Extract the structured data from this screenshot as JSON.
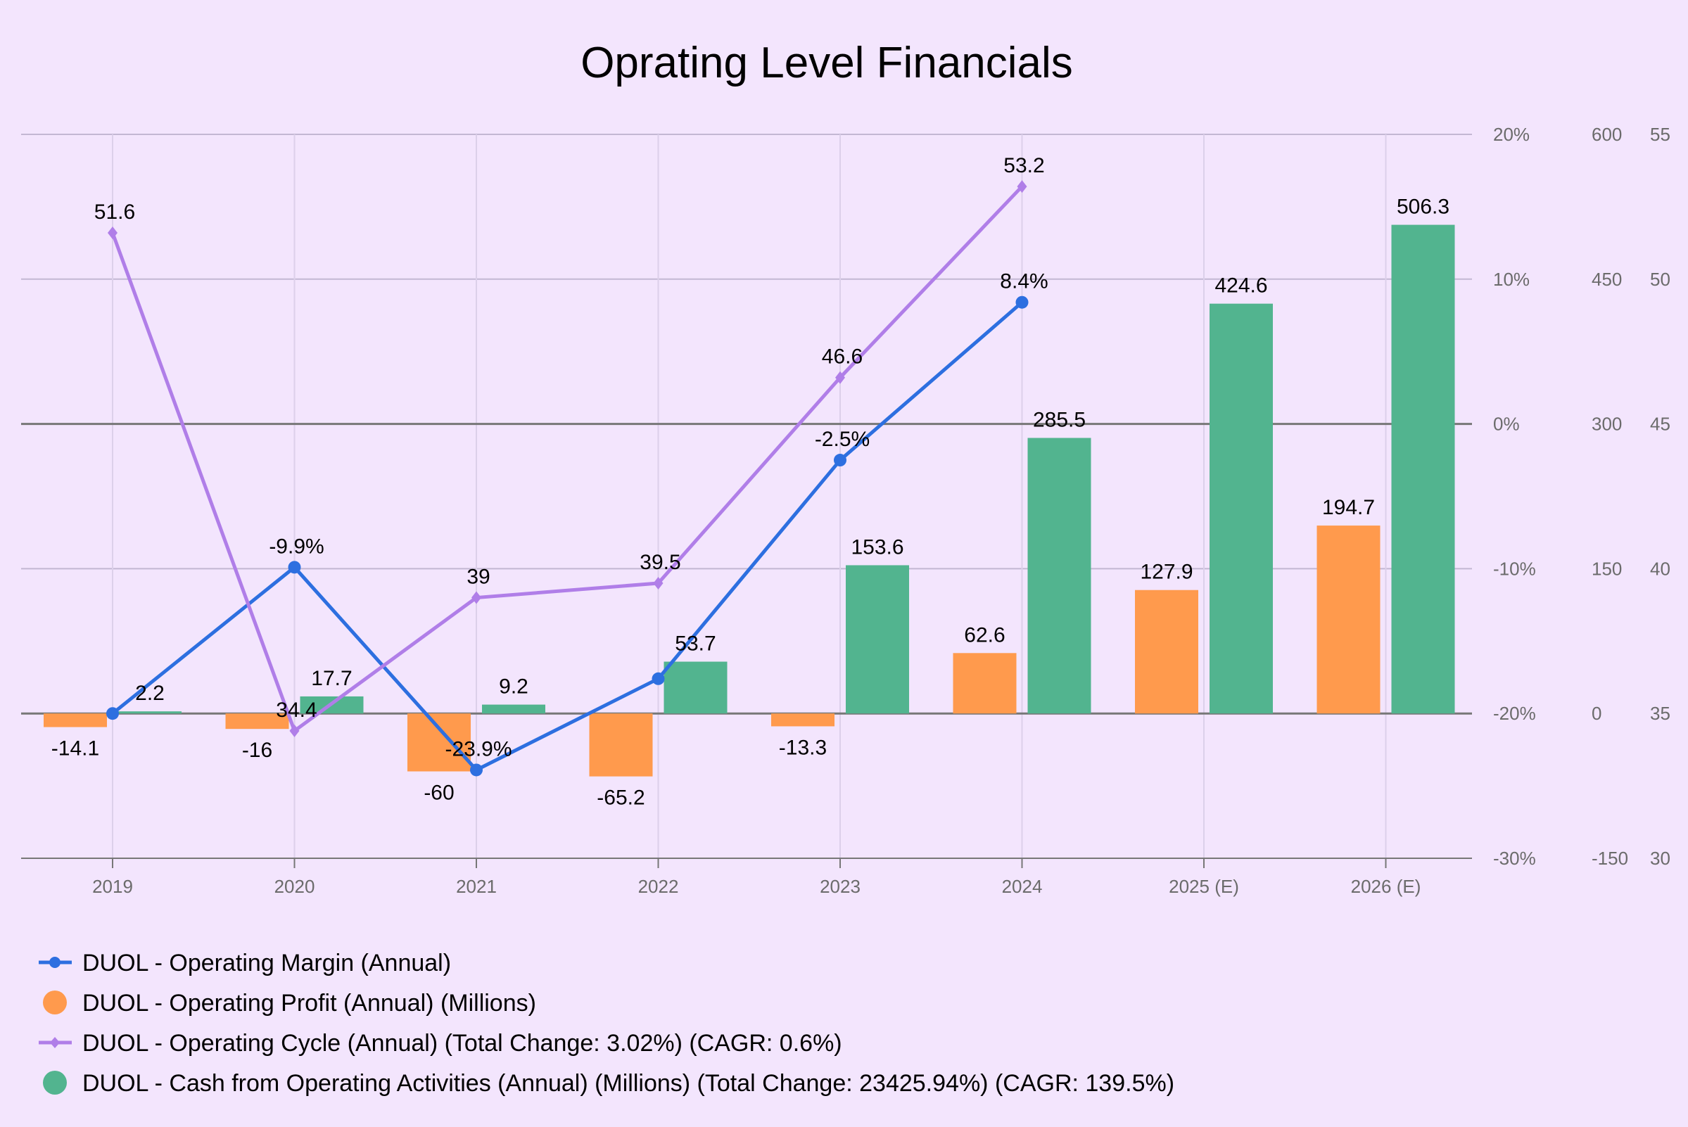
{
  "chart_data": {
    "type": "bar+line",
    "title": "Oprating Level Financials",
    "categories": [
      "2019",
      "2020",
      "2021",
      "2022",
      "2023",
      "2024",
      "2025 (E)",
      "2026 (E)"
    ],
    "axes": {
      "margin": {
        "ticks": [
          "20%",
          "10%",
          "0%",
          "-10%",
          "-20%",
          "-30%"
        ],
        "range": [
          -30,
          20
        ]
      },
      "millions": {
        "ticks": [
          "600",
          "450",
          "300",
          "150",
          "0",
          "-150"
        ],
        "range": [
          -150,
          600
        ]
      },
      "cycle": {
        "ticks": [
          "55",
          "50",
          "45",
          "40",
          "35",
          "30"
        ],
        "range": [
          30,
          55
        ]
      }
    },
    "series": [
      {
        "name": "DUOL - Operating Margin (Annual)",
        "kind": "line",
        "axis": "margin",
        "color": "#2d6fe0",
        "marker": "circle",
        "values": [
          -20,
          -9.9,
          -23.9,
          -17.6,
          -2.5,
          8.4,
          null,
          null
        ],
        "labels": [
          "",
          "-9.9%",
          "-23.9%",
          "",
          "-2.5%",
          "8.4%",
          "",
          ""
        ]
      },
      {
        "name": "DUOL - Operating Profit (Annual) (Millions)",
        "kind": "bar",
        "axis": "millions",
        "color": "#ff9a4d",
        "values": [
          -14.1,
          -16,
          -60,
          -65.2,
          -13.3,
          62.6,
          127.9,
          194.7
        ],
        "labels": [
          "-14.1",
          "-16",
          "-60",
          "-65.2",
          "-13.3",
          "62.6",
          "127.9",
          "194.7"
        ]
      },
      {
        "name": "DUOL - Operating Cycle (Annual) (Total Change: 3.02%) (CAGR: 0.6%)",
        "kind": "line",
        "axis": "cycle",
        "color": "#b07ee8",
        "marker": "diamond",
        "values": [
          51.6,
          34.4,
          39,
          39.5,
          46.6,
          53.2,
          null,
          null
        ],
        "labels": [
          "51.6",
          "34.4",
          "39",
          "39.5",
          "46.6",
          "53.2",
          "",
          ""
        ]
      },
      {
        "name": "DUOL - Cash from Operating Activities (Annual) (Millions) (Total Change: 23425.94%) (CAGR: 139.5%)",
        "kind": "bar",
        "axis": "millions",
        "color": "#52b48f",
        "values": [
          2.2,
          17.7,
          9.2,
          53.7,
          153.6,
          285.5,
          424.6,
          506.3
        ],
        "labels": [
          "2.2",
          "17.7",
          "9.2",
          "53.7",
          "153.6",
          "285.5",
          "424.6",
          "506.3"
        ]
      }
    ]
  }
}
